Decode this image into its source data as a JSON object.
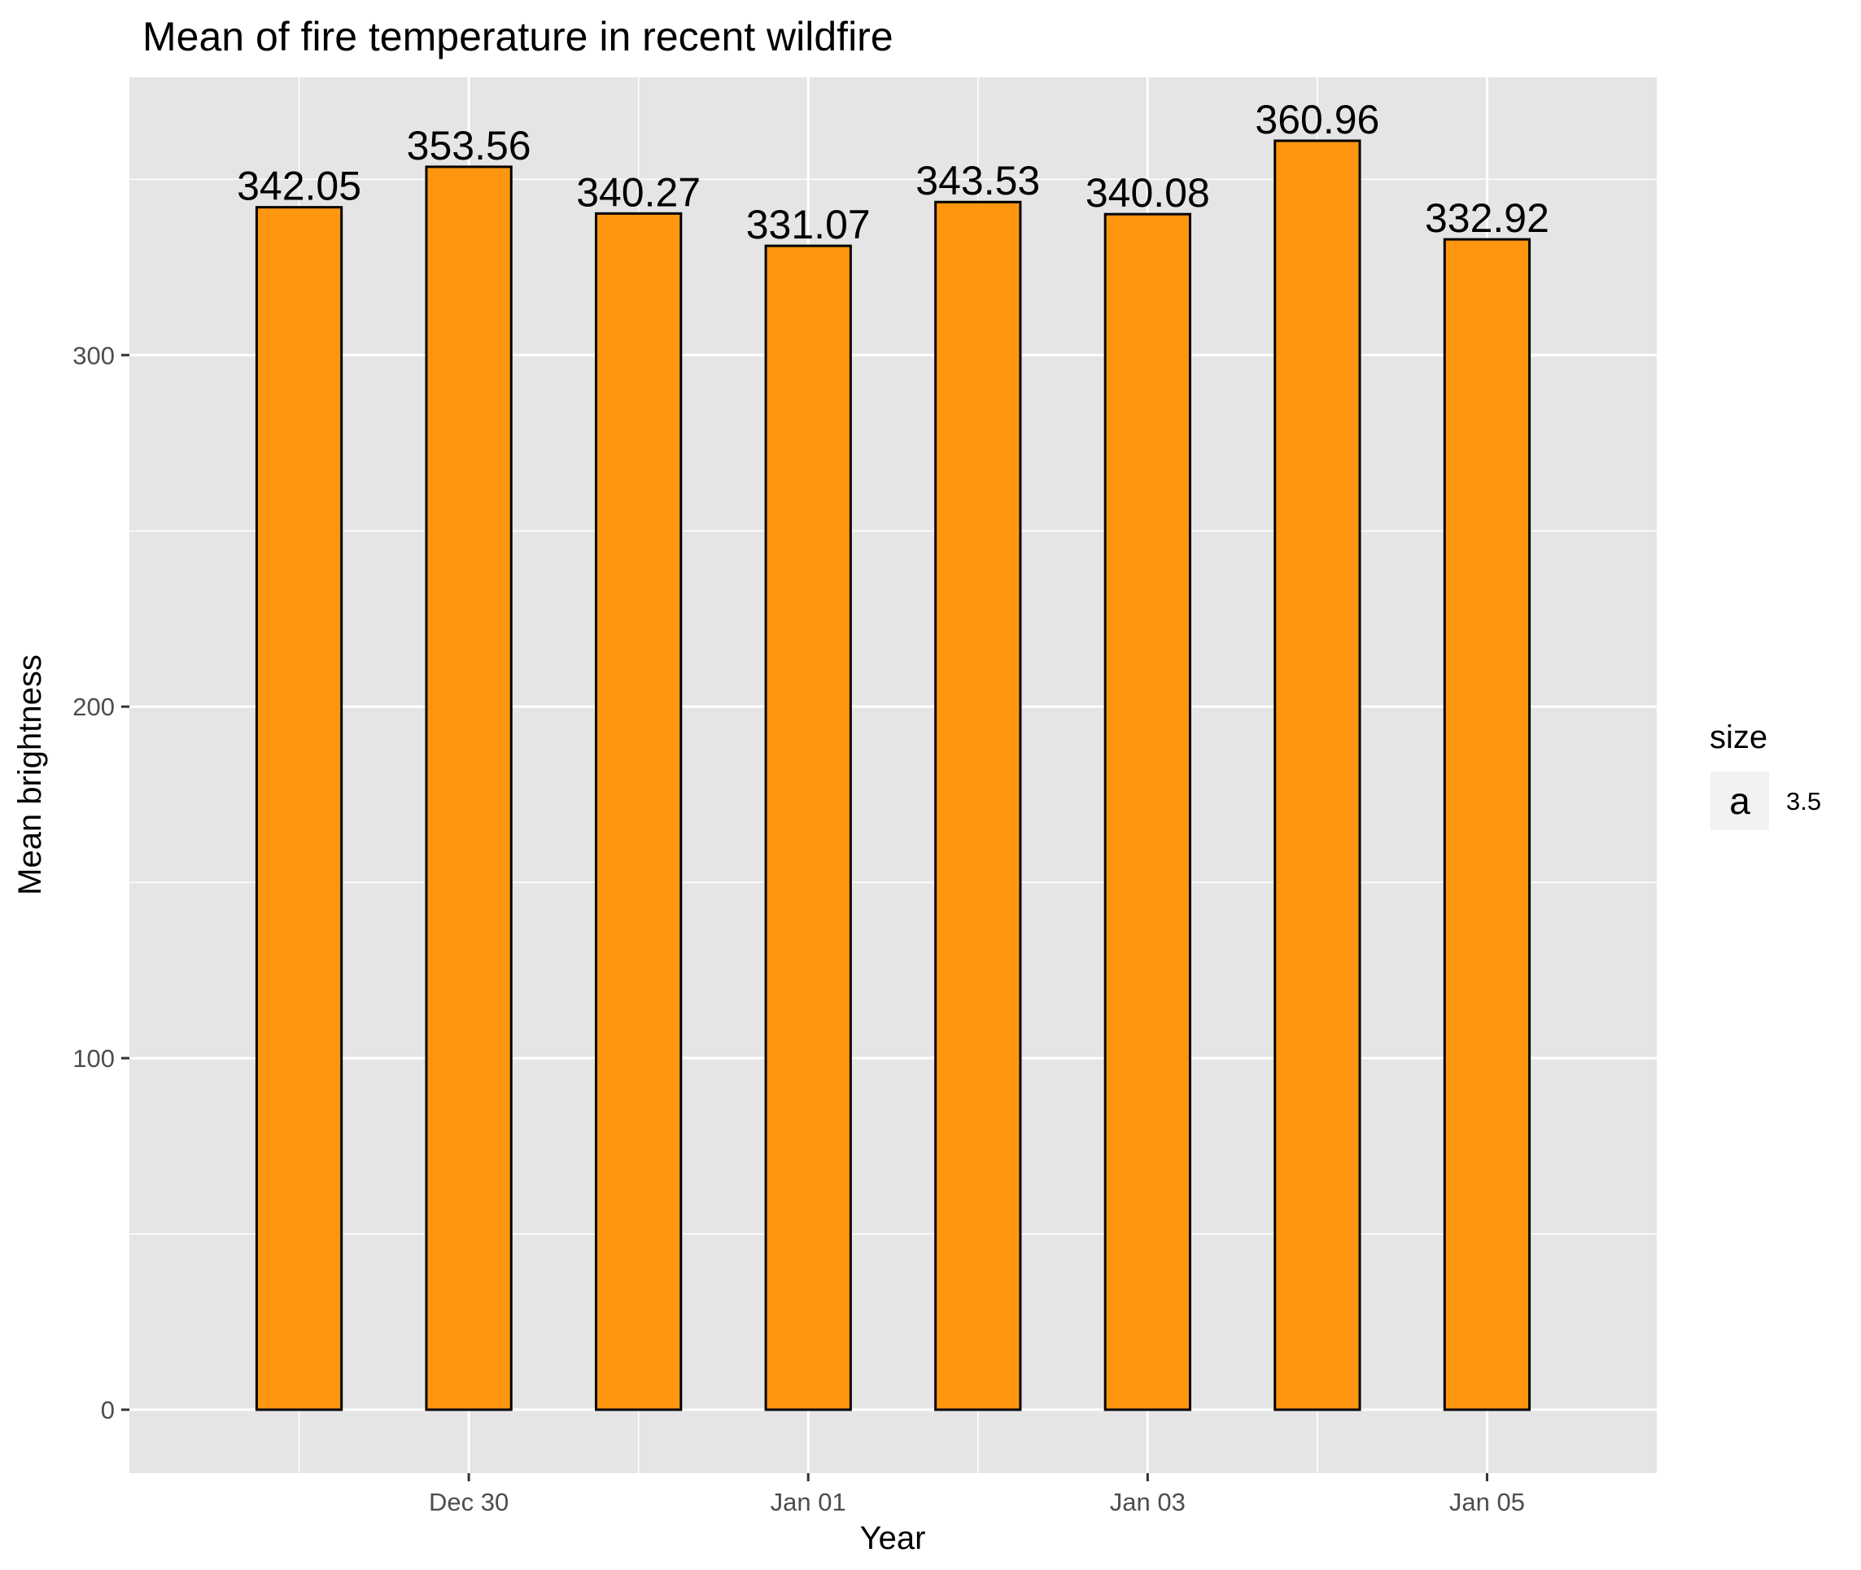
{
  "chart_data": {
    "type": "bar",
    "title": "Mean of fire temperature in recent wildfire",
    "xlabel": "Year",
    "ylabel": "Mean brightness",
    "x": [
      "2019-12-29",
      "2019-12-30",
      "2019-12-31",
      "2020-01-01",
      "2020-01-02",
      "2020-01-03",
      "2020-01-04",
      "2020-01-05"
    ],
    "values": [
      342.05,
      353.56,
      340.27,
      331.07,
      343.53,
      340.08,
      360.96,
      332.92
    ],
    "data_labels": [
      "342.05",
      "353.56",
      "340.27",
      "331.07",
      "343.53",
      "340.08",
      "360.96",
      "332.92"
    ],
    "ylim": [
      -18.05,
      379.01
    ],
    "xlim": [
      "2019-12-28",
      "2020-01-06"
    ],
    "y_ticks": [
      0,
      100,
      200,
      300
    ],
    "y_tick_labels": [
      "0",
      "100",
      "200",
      "300"
    ],
    "x_ticks": [
      "2019-12-30",
      "2020-01-01",
      "2020-01-03",
      "2020-01-05"
    ],
    "x_tick_labels": [
      "Dec 30",
      "Jan 01",
      "Jan 03",
      "Jan 05"
    ],
    "grid": true,
    "legend": {
      "title": "size",
      "key_text": "a",
      "label": "3.5",
      "position": "right"
    },
    "colors": {
      "bar_fill": "#ff960f",
      "bar_outline": "#000000",
      "panel_bg": "#e5e5e5",
      "grid": "#ffffff"
    }
  }
}
